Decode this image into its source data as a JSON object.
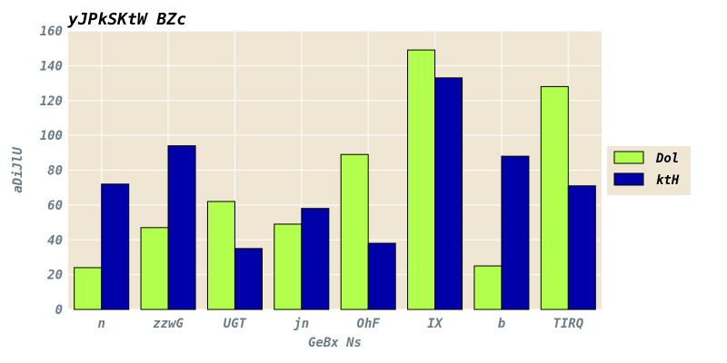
{
  "chart_data": {
    "type": "bar",
    "title": "yJPkSKtW BZc",
    "xlabel": "GeBx Ns",
    "ylabel": "aDiJlU",
    "categories": [
      "n",
      "zzwG",
      "UGT",
      "jn",
      "OhF",
      "IX",
      "b",
      "TIRQ"
    ],
    "series": [
      {
        "name": "Dol",
        "color": "#b3ff4d",
        "values": [
          24,
          47,
          62,
          49,
          89,
          149,
          25,
          128
        ]
      },
      {
        "name": "ktH",
        "color": "#0000a8",
        "values": [
          72,
          94,
          35,
          58,
          38,
          133,
          88,
          71
        ]
      }
    ],
    "ylim": [
      0,
      160
    ],
    "yticks": [
      0,
      20,
      40,
      60,
      80,
      100,
      120,
      140,
      160
    ],
    "grid": true,
    "plot_background": "#efe7d3",
    "legend_position": "right"
  }
}
